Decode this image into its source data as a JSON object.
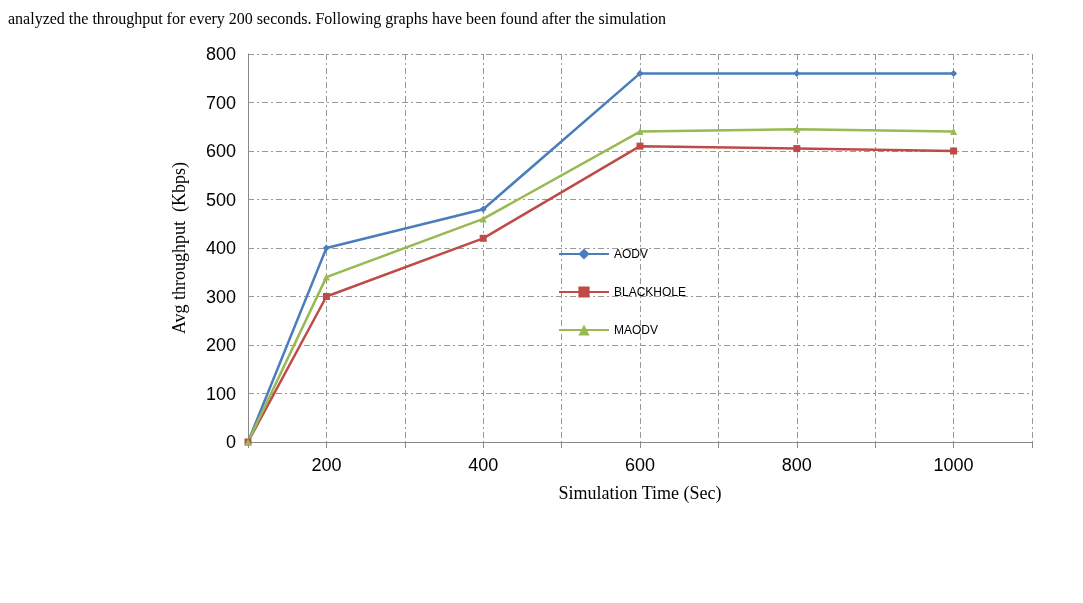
{
  "chart_data": {
    "type": "line",
    "annotations": [
      "analyzed the throughput for every 200 seconds. Following graphs have been found after the simulation"
    ],
    "xlabel": "Simulation Time (Sec)",
    "ylabel": "Avg throughput  (Kbps)",
    "x": [
      100,
      200,
      400,
      600,
      800,
      1000
    ],
    "series": [
      {
        "name": "AODV",
        "color": "#4a7ebb",
        "marker": "diamond",
        "values": [
          0,
          400,
          480,
          760,
          760,
          760
        ]
      },
      {
        "name": "BLACKHOLE",
        "color": "#be4b48",
        "marker": "square",
        "values": [
          0,
          300,
          420,
          610,
          605,
          600
        ]
      },
      {
        "name": "MAODV",
        "color": "#98b954",
        "marker": "triangle",
        "values": [
          0,
          340,
          460,
          640,
          645,
          640
        ]
      }
    ],
    "xlim": [
      100,
      1100
    ],
    "xticks": [
      {
        "value": 100,
        "label": null
      },
      200,
      {
        "value": 300,
        "label": null
      },
      400,
      {
        "value": 500,
        "label": null
      },
      600,
      {
        "value": 700,
        "label": null
      },
      800,
      {
        "value": 900,
        "label": null
      },
      1000,
      {
        "value": 1100,
        "label": null
      }
    ],
    "ylim": [
      0,
      800
    ],
    "yticks": [
      0,
      100,
      200,
      300,
      400,
      500,
      600,
      700,
      800
    ],
    "grid": true,
    "legend": "center"
  }
}
